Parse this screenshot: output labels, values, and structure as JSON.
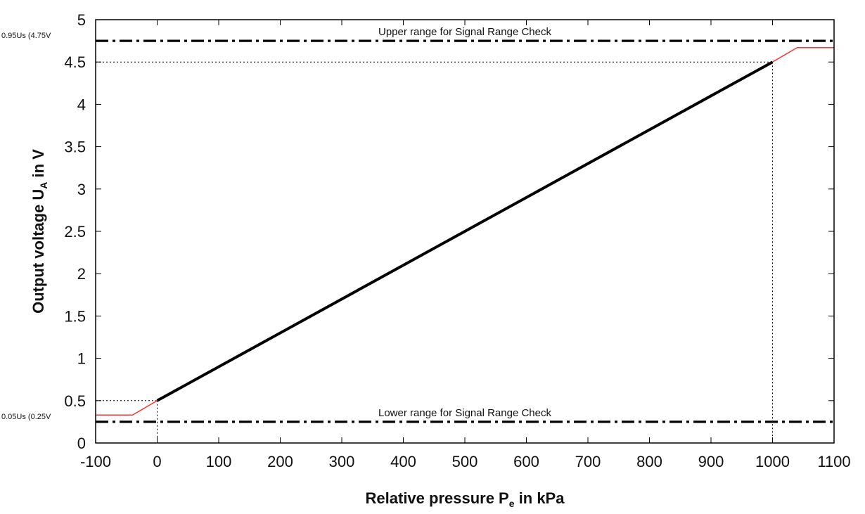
{
  "chart_data": {
    "type": "line",
    "xlabel": {
      "main": "Relative pressure P",
      "sub": "e",
      "rest": " in kPa"
    },
    "ylabel": {
      "main": "Output voltage U",
      "sub": "A",
      "rest": "  in V"
    },
    "xlim": [
      -100,
      1100
    ],
    "ylim": [
      0,
      5
    ],
    "xticks": [
      -100,
      0,
      100,
      200,
      300,
      400,
      500,
      600,
      700,
      800,
      900,
      1000,
      1100
    ],
    "yticks": [
      0,
      0.5,
      1,
      1.5,
      2,
      2.5,
      3,
      3.5,
      4,
      4.5,
      5
    ],
    "grid": false,
    "series": [
      {
        "role": "characteristic",
        "color": "#000000",
        "x": [
          0,
          1000
        ],
        "y": [
          0.5,
          4.5
        ]
      },
      {
        "role": "lower-clamp",
        "color": "#ff3333",
        "x": [
          -100,
          -40,
          0
        ],
        "y": [
          0.33,
          0.33,
          0.5
        ]
      },
      {
        "role": "upper-clamp",
        "color": "#ff3333",
        "x": [
          1000,
          1040,
          1100
        ],
        "y": [
          4.5,
          4.67,
          4.67
        ]
      }
    ],
    "thresholds": [
      {
        "y": 4.75,
        "label": "Upper range for Signal Range Check",
        "label_x": 500,
        "tick_label": "0.95Us (4.75V"
      },
      {
        "y": 0.25,
        "label": "Lower range for Signal Range Check",
        "label_x": 500,
        "tick_label": "0.05Us (0.25V"
      }
    ],
    "guides": [
      {
        "x": 0,
        "y": 0.5
      },
      {
        "x": 1000,
        "y": 4.5
      }
    ]
  }
}
